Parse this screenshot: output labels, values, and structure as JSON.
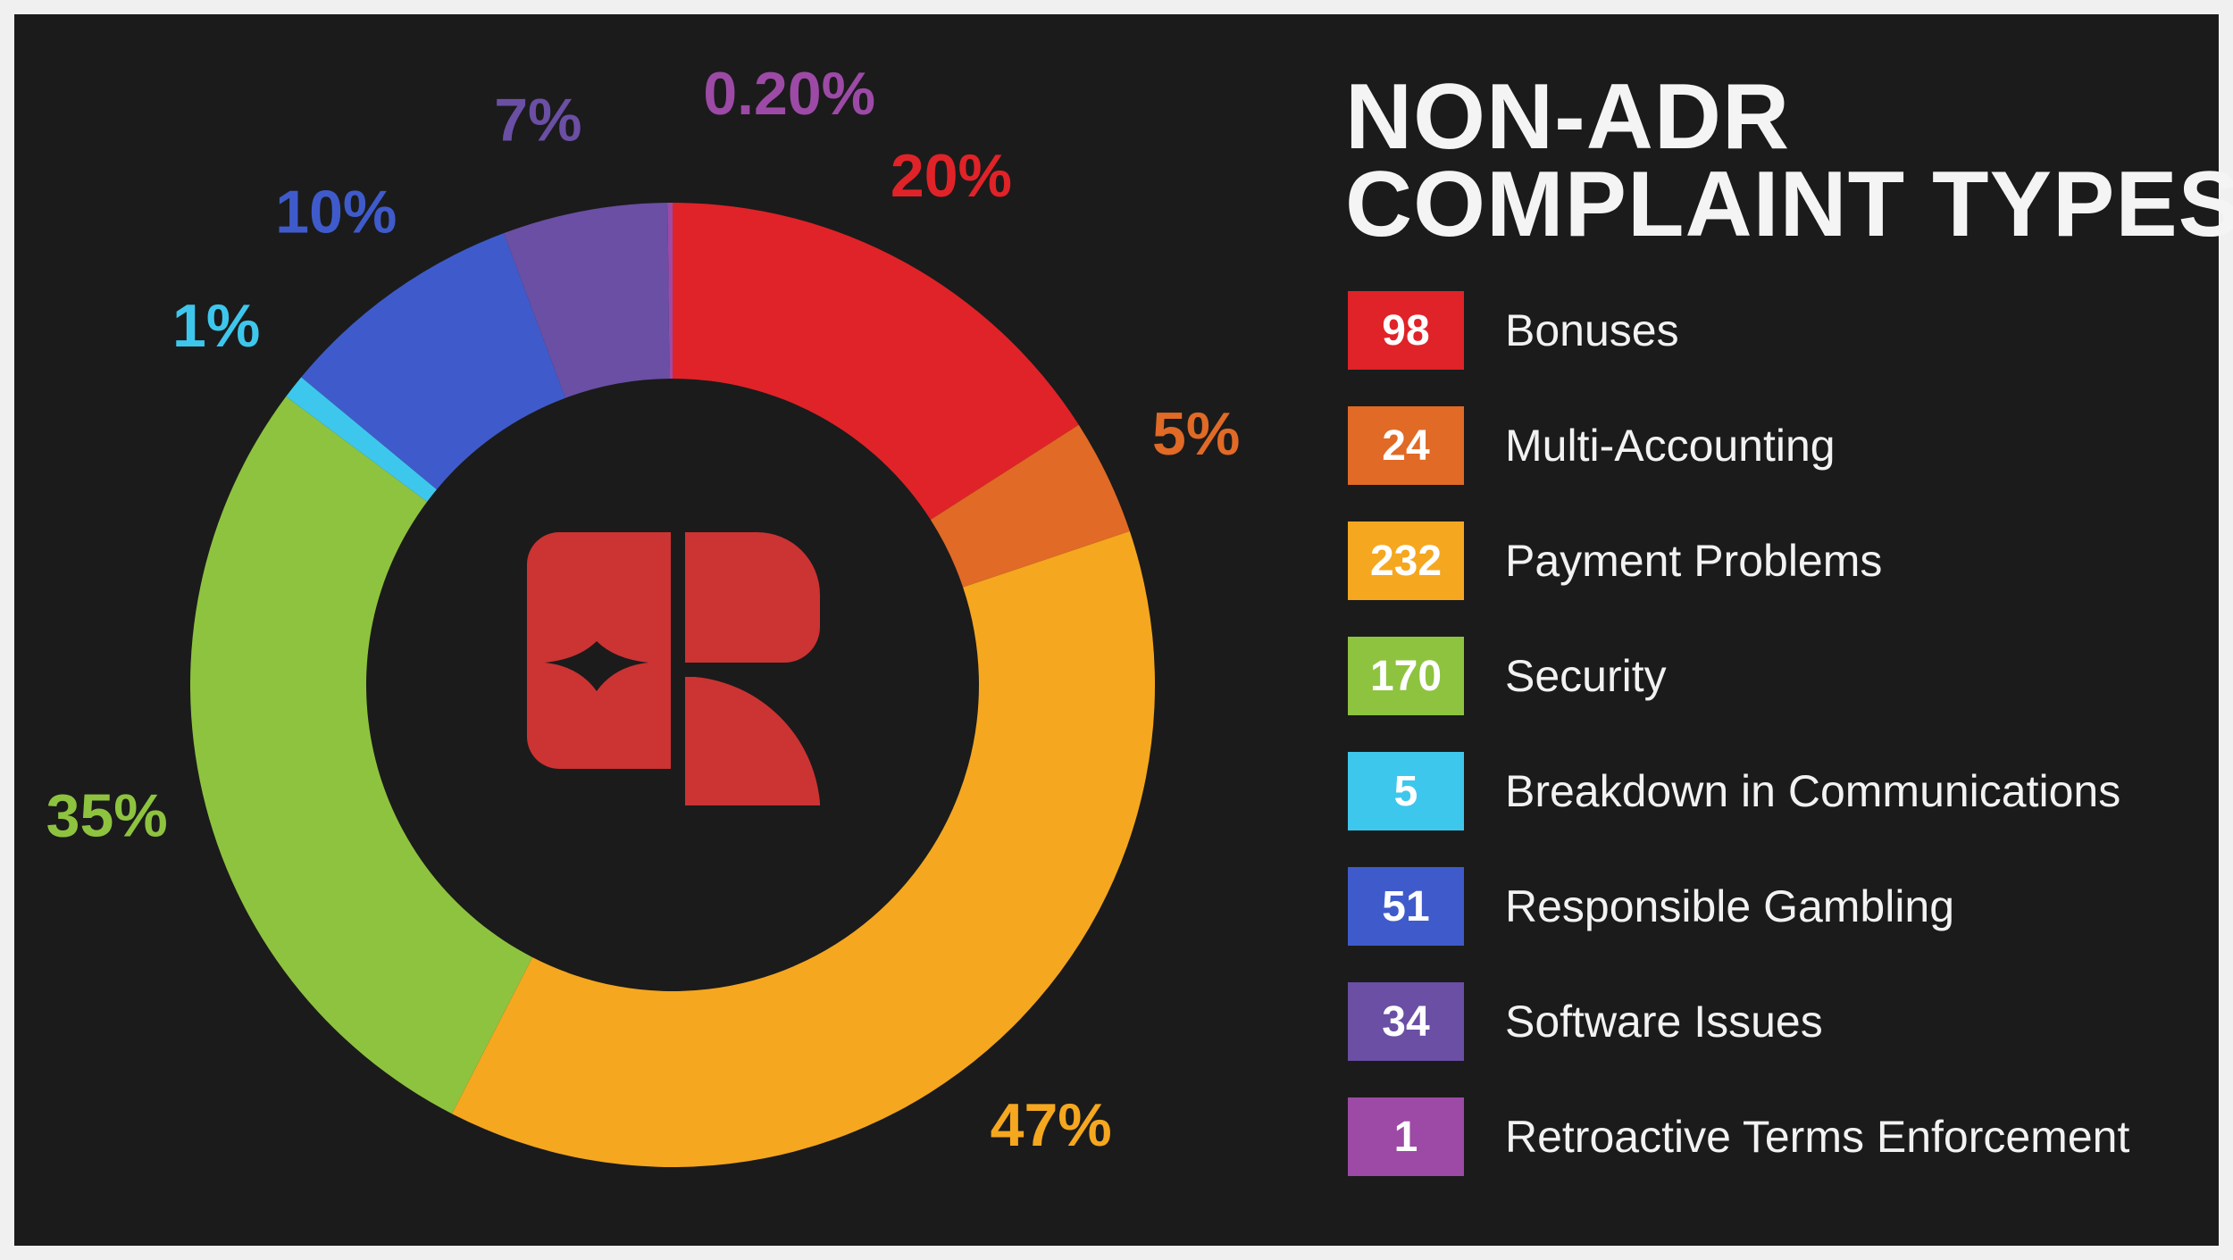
{
  "title_lines": [
    "NON-ADR",
    "COMPLAINT TYPES"
  ],
  "chart_data": {
    "type": "pie",
    "title": "NON-ADR COMPLAINT TYPES",
    "categories": [
      "Bonuses",
      "Multi-Accounting",
      "Payment Problems",
      "Security",
      "Breakdown in Communications",
      "Responsible Gambling",
      "Software Issues",
      "Retroactive Terms Enforcement"
    ],
    "values": [
      98,
      24,
      232,
      170,
      5,
      51,
      34,
      1
    ],
    "percent_labels": [
      "20%",
      "5%",
      "47%",
      "35%",
      "1%",
      "10%",
      "7%",
      "0.20%"
    ],
    "colors": [
      "#e02328",
      "#e06a26",
      "#f5a71f",
      "#8ec33f",
      "#3ec7ec",
      "#3f5bcb",
      "#6a4fa4",
      "#9c4aa6"
    ],
    "donut": true,
    "legend_position": "right"
  },
  "legend": [
    {
      "value": "98",
      "label": "Bonuses",
      "color": "#e02328"
    },
    {
      "value": "24",
      "label": "Multi-Accounting",
      "color": "#e06a26"
    },
    {
      "value": "232",
      "label": "Payment Problems",
      "color": "#f5a71f"
    },
    {
      "value": "170",
      "label": "Security",
      "color": "#8ec33f"
    },
    {
      "value": "5",
      "label": "Breakdown in Communications",
      "color": "#3ec7ec"
    },
    {
      "value": "51",
      "label": "Responsible Gambling",
      "color": "#3f5bcb"
    },
    {
      "value": "34",
      "label": "Software Issues",
      "color": "#6a4fa4"
    },
    {
      "value": "1",
      "label": "Retroactive Terms Enforcement",
      "color": "#9c4aa6"
    }
  ],
  "logo": {
    "name": "casino-guru-logo",
    "color": "#cc3333"
  }
}
